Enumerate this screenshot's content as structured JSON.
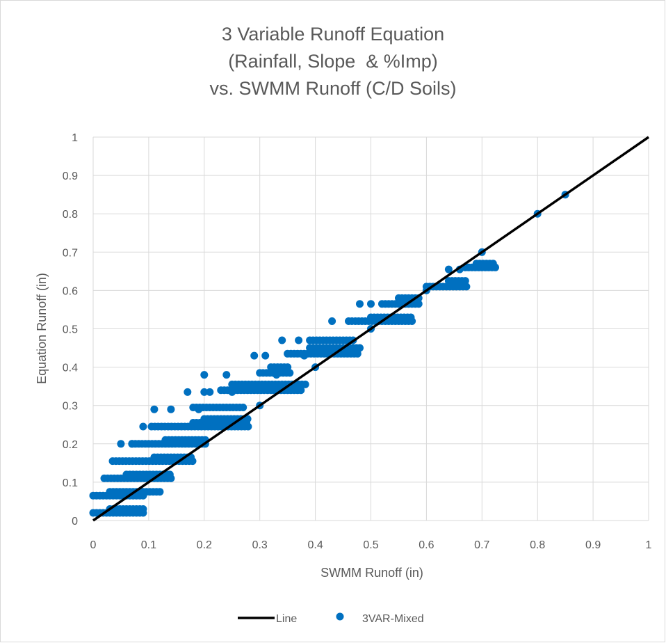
{
  "chart_data": {
    "type": "scatter",
    "title_lines": [
      "3 Variable Runoff Equation",
      "(Rainfall, Slope  & %Imp)",
      "vs. SWMM Runoff (C/D Soils)"
    ],
    "xlabel": "SWMM Runoff (in)",
    "ylabel": "Equation Runoff (in)",
    "xlim": [
      0,
      1
    ],
    "ylim": [
      0,
      1
    ],
    "xticks": [
      "0",
      "0.1",
      "0.2",
      "0.3",
      "0.4",
      "0.5",
      "0.6",
      "0.7",
      "0.8",
      "0.9",
      "1"
    ],
    "yticks": [
      "0",
      "0.1",
      "0.2",
      "0.3",
      "0.4",
      "0.5",
      "0.6",
      "0.7",
      "0.8",
      "0.9",
      "1"
    ],
    "grid": true,
    "legend_position": "bottom",
    "series": [
      {
        "name": "Line",
        "kind": "line",
        "color": "#000000",
        "points": [
          [
            0,
            0
          ],
          [
            1,
            1
          ]
        ]
      },
      {
        "name": "3VAR-Mixed",
        "kind": "scatter",
        "color": "#0070C0",
        "segments": [
          {
            "y": 0.02,
            "x0": 0.0,
            "x1": 0.095
          },
          {
            "y": 0.03,
            "x0": 0.03,
            "x1": 0.095
          },
          {
            "y": 0.065,
            "x0": 0.0,
            "x1": 0.095
          },
          {
            "y": 0.075,
            "x0": 0.03,
            "x1": 0.12
          },
          {
            "y": 0.11,
            "x0": 0.02,
            "x1": 0.14
          },
          {
            "y": 0.12,
            "x0": 0.06,
            "x1": 0.14
          },
          {
            "y": 0.155,
            "x0": 0.035,
            "x1": 0.18
          },
          {
            "y": 0.165,
            "x0": 0.11,
            "x1": 0.18
          },
          {
            "y": 0.2,
            "x0": 0.07,
            "x1": 0.205
          },
          {
            "y": 0.21,
            "x0": 0.13,
            "x1": 0.205
          },
          {
            "y": 0.245,
            "x0": 0.105,
            "x1": 0.28
          },
          {
            "y": 0.255,
            "x0": 0.18,
            "x1": 0.28
          },
          {
            "y": 0.265,
            "x0": 0.2,
            "x1": 0.28
          },
          {
            "y": 0.295,
            "x0": 0.18,
            "x1": 0.275
          },
          {
            "y": 0.34,
            "x0": 0.23,
            "x1": 0.375
          },
          {
            "y": 0.355,
            "x0": 0.25,
            "x1": 0.385
          },
          {
            "y": 0.385,
            "x0": 0.3,
            "x1": 0.355
          },
          {
            "y": 0.4,
            "x0": 0.32,
            "x1": 0.355
          },
          {
            "y": 0.435,
            "x0": 0.35,
            "x1": 0.48
          },
          {
            "y": 0.45,
            "x0": 0.39,
            "x1": 0.48
          },
          {
            "y": 0.47,
            "x0": 0.39,
            "x1": 0.47
          },
          {
            "y": 0.52,
            "x0": 0.46,
            "x1": 0.575
          },
          {
            "y": 0.53,
            "x0": 0.5,
            "x1": 0.575
          },
          {
            "y": 0.565,
            "x0": 0.52,
            "x1": 0.59
          },
          {
            "y": 0.58,
            "x0": 0.55,
            "x1": 0.59
          },
          {
            "y": 0.61,
            "x0": 0.6,
            "x1": 0.675
          },
          {
            "y": 0.625,
            "x0": 0.64,
            "x1": 0.675
          },
          {
            "y": 0.66,
            "x0": 0.67,
            "x1": 0.725
          },
          {
            "y": 0.67,
            "x0": 0.69,
            "x1": 0.725
          }
        ],
        "outliers": [
          [
            0.09,
            0.245
          ],
          [
            0.07,
            0.2
          ],
          [
            0.05,
            0.2
          ],
          [
            0.11,
            0.29
          ],
          [
            0.14,
            0.29
          ],
          [
            0.17,
            0.335
          ],
          [
            0.2,
            0.335
          ],
          [
            0.21,
            0.335
          ],
          [
            0.2,
            0.38
          ],
          [
            0.24,
            0.38
          ],
          [
            0.19,
            0.29
          ],
          [
            0.25,
            0.335
          ],
          [
            0.29,
            0.43
          ],
          [
            0.31,
            0.43
          ],
          [
            0.3,
            0.3
          ],
          [
            0.4,
            0.4
          ],
          [
            0.34,
            0.47
          ],
          [
            0.37,
            0.47
          ],
          [
            0.43,
            0.52
          ],
          [
            0.48,
            0.565
          ],
          [
            0.5,
            0.565
          ],
          [
            0.5,
            0.5
          ],
          [
            0.6,
            0.6
          ],
          [
            0.64,
            0.655
          ],
          [
            0.66,
            0.655
          ],
          [
            0.7,
            0.7
          ],
          [
            0.8,
            0.8
          ],
          [
            0.85,
            0.85
          ],
          [
            0.38,
            0.43
          ],
          [
            0.33,
            0.38
          ]
        ]
      }
    ]
  }
}
